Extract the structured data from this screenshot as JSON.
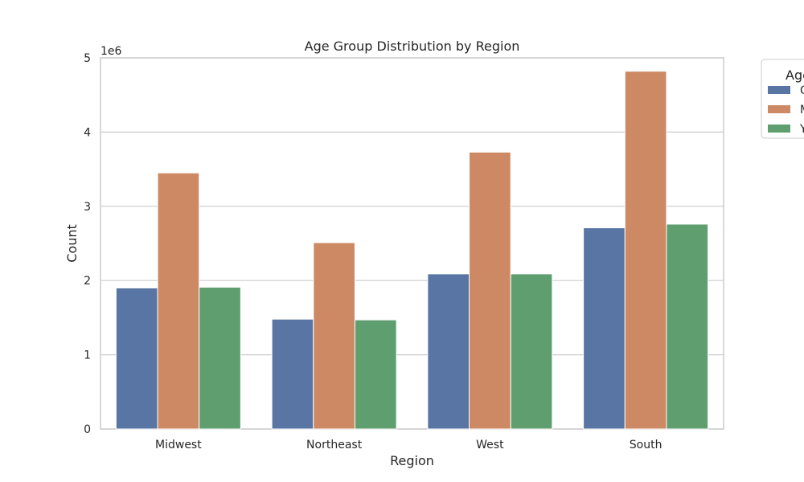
{
  "chart_data": {
    "type": "bar",
    "title": "Age Group Distribution by Region",
    "xlabel": "Region",
    "ylabel": "Count",
    "y_offset_label": "1e6",
    "y_scale": 1000000,
    "categories": [
      "Midwest",
      "Northeast",
      "West",
      "South"
    ],
    "ylim": [
      0,
      5
    ],
    "yticks": [
      "0",
      "1",
      "2",
      "3",
      "4",
      "5"
    ],
    "grid": true,
    "legend": {
      "title": "Age",
      "placement": "outside-top-right",
      "entries": [
        "O",
        "M",
        "Y"
      ]
    },
    "series": [
      {
        "name": "O",
        "color": "#5875a4",
        "values": [
          1.9,
          1.48,
          2.09,
          2.71
        ]
      },
      {
        "name": "M",
        "color": "#cc8963",
        "values": [
          3.45,
          2.51,
          3.73,
          4.82
        ]
      },
      {
        "name": "Y",
        "color": "#5f9e6e",
        "values": [
          1.91,
          1.47,
          2.09,
          2.76
        ]
      }
    ]
  }
}
